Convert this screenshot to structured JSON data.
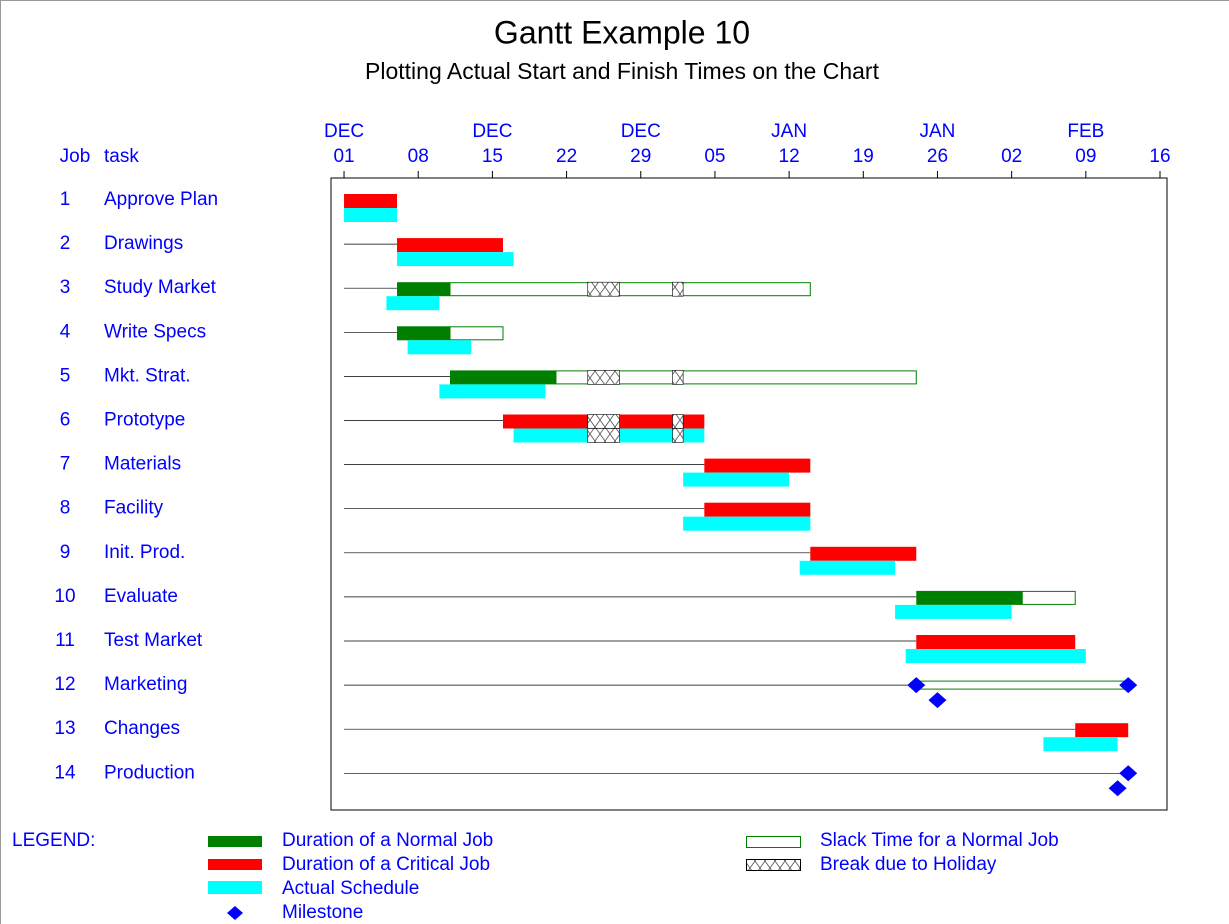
{
  "chart_data": {
    "type": "gantt",
    "title": "Gantt Example 10",
    "subtitle": "Plotting Actual Start and Finish Times on the Chart",
    "columns": [
      "Job",
      "task"
    ],
    "xlim": [
      -1.23,
      77.66
    ],
    "xticks": [
      {
        "value": 0,
        "label": "01"
      },
      {
        "value": 7,
        "label": "08"
      },
      {
        "value": 14,
        "label": "15"
      },
      {
        "value": 21,
        "label": "22"
      },
      {
        "value": 28,
        "label": "29"
      },
      {
        "value": 35,
        "label": "05"
      },
      {
        "value": 42,
        "label": "12"
      },
      {
        "value": 49,
        "label": "19"
      },
      {
        "value": 56,
        "label": "26"
      },
      {
        "value": 63,
        "label": "02"
      },
      {
        "value": 70,
        "label": "09"
      },
      {
        "value": 77,
        "label": "16"
      }
    ],
    "xtick_months": [
      {
        "value": 0,
        "label": "DEC"
      },
      {
        "value": 14,
        "label": "DEC"
      },
      {
        "value": 28,
        "label": "DEC"
      },
      {
        "value": 42,
        "label": "JAN"
      },
      {
        "value": 56,
        "label": "JAN"
      },
      {
        "value": 70,
        "label": "FEB"
      }
    ],
    "holidays": [
      [
        23,
        26
      ],
      [
        31,
        32
      ]
    ],
    "colors": {
      "normal": "#008000",
      "critical": "#ff0000",
      "actual": "#00ffff",
      "slack": "#008000",
      "milestone": "#0000ff"
    },
    "tasks": [
      {
        "job": 1,
        "task": "Approve Plan",
        "critical": true,
        "start": 0,
        "finish": 5,
        "actual_start": 0,
        "actual_finish": 5
      },
      {
        "job": 2,
        "task": "Drawings",
        "critical": true,
        "start": 5,
        "finish": 15,
        "actual_start": 5,
        "actual_finish": 16
      },
      {
        "job": 3,
        "task": "Study Market",
        "critical": false,
        "start": 5,
        "finish": 10,
        "slack_finish": 44,
        "actual_start": 4,
        "actual_finish": 9
      },
      {
        "job": 4,
        "task": "Write Specs",
        "critical": false,
        "start": 5,
        "finish": 10,
        "slack_finish": 15,
        "actual_start": 6,
        "actual_finish": 12
      },
      {
        "job": 5,
        "task": "Mkt. Strat.",
        "critical": false,
        "start": 10,
        "finish": 20,
        "slack_finish": 54,
        "actual_start": 9,
        "actual_finish": 19
      },
      {
        "job": 6,
        "task": "Prototype",
        "critical": true,
        "start": 15,
        "finish": 34,
        "actual_start": 16,
        "actual_finish": 34
      },
      {
        "job": 7,
        "task": "Materials",
        "critical": true,
        "start": 34,
        "finish": 44,
        "actual_start": 32,
        "actual_finish": 42
      },
      {
        "job": 8,
        "task": "Facility",
        "critical": true,
        "start": 34,
        "finish": 44,
        "actual_start": 32,
        "actual_finish": 44
      },
      {
        "job": 9,
        "task": "Init. Prod.",
        "critical": true,
        "start": 44,
        "finish": 54,
        "actual_start": 43,
        "actual_finish": 52
      },
      {
        "job": 10,
        "task": "Evaluate",
        "critical": false,
        "start": 54,
        "finish": 64,
        "slack_finish": 69,
        "actual_start": 52,
        "actual_finish": 63
      },
      {
        "job": 11,
        "task": "Test Market",
        "critical": true,
        "start": 54,
        "finish": 69,
        "actual_start": 53,
        "actual_finish": 70
      },
      {
        "job": 12,
        "task": "Marketing",
        "critical": false,
        "start": 54,
        "finish": 54,
        "slack_finish": 74,
        "actual_start": 56,
        "actual_finish": 56
      },
      {
        "job": 13,
        "task": "Changes",
        "critical": true,
        "start": 69,
        "finish": 74,
        "actual_start": 66,
        "actual_finish": 73
      },
      {
        "job": 14,
        "task": "Production",
        "critical": true,
        "start": 74,
        "finish": 74,
        "actual_start": 73,
        "actual_finish": 73
      }
    ],
    "legend": {
      "title": "LEGEND:",
      "items": [
        "Duration of a Normal Job",
        "Duration of a Critical Job",
        "Actual Schedule",
        "Milestone",
        "Slack Time for a Normal Job",
        "Break due to Holiday"
      ]
    }
  }
}
